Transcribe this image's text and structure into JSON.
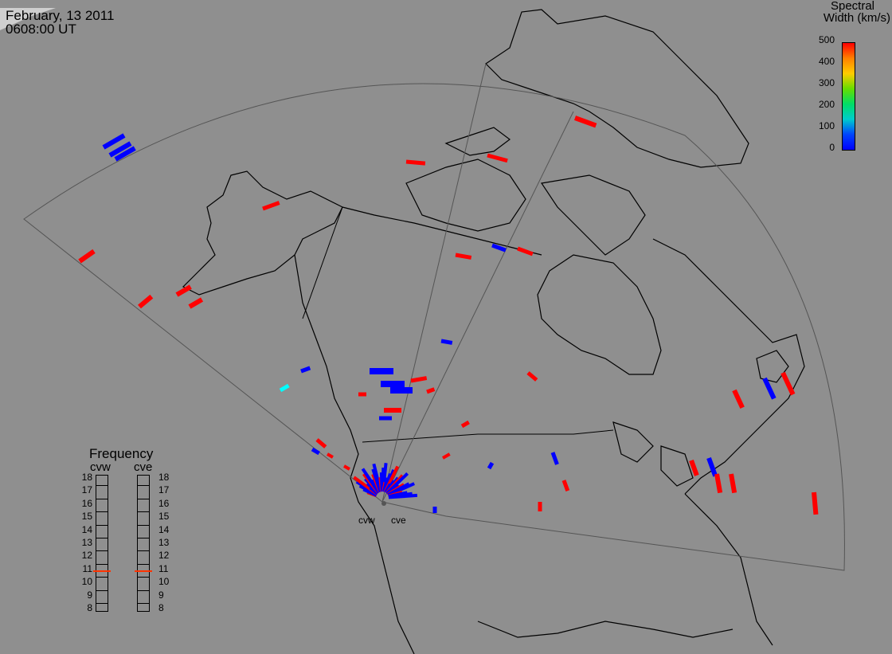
{
  "header": {
    "date": "February, 13 2011",
    "time": "0608:00 UT"
  },
  "colorbar": {
    "title_line1": "Spectral",
    "title_line2": "Width (km/s)",
    "ticks": [
      "500",
      "400",
      "300",
      "200",
      "100",
      "0"
    ],
    "gradient": [
      "#ff0000",
      "#ff8000",
      "#ffcc00",
      "#66dd00",
      "#00dd66",
      "#00cccc",
      "#0044ff",
      "#0000ff"
    ]
  },
  "frequency_panel": {
    "title": "Frequency",
    "left_label": "cvw",
    "right_label": "cve",
    "levels": [
      "18",
      "17",
      "16",
      "15",
      "14",
      "13",
      "12",
      "11",
      "10",
      "9",
      "8"
    ],
    "cvw_value": 10.9,
    "cve_value": 10.9,
    "marker_color": "#ff3300"
  },
  "stations": {
    "cvw": "cvw",
    "cve": "cve"
  },
  "colors": {
    "background": "#8f8f8f",
    "coast": "#000000",
    "high_width": "#ff0000",
    "low_width": "#0000ff",
    "mid_width": "#00e0ff"
  }
}
